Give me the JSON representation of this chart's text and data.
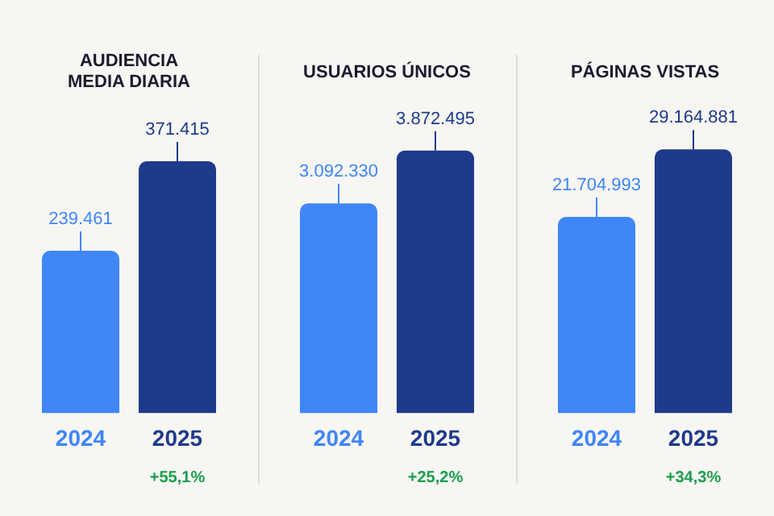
{
  "chart_data": [
    {
      "type": "bar",
      "title": "AUDIENCIA MEDIA DIARIA",
      "categories": [
        "2024",
        "2025"
      ],
      "values": [
        239461,
        371415
      ],
      "value_labels": [
        "239.461",
        "371.415"
      ],
      "colors": [
        "#3f86f7",
        "#1e3a8a"
      ],
      "tick_labels": "x",
      "annotations": [
        "+55,1%"
      ]
    },
    {
      "type": "bar",
      "title": "USUARIOS ÚNICOS",
      "categories": [
        "2024",
        "2025"
      ],
      "values": [
        3092330,
        3872495
      ],
      "value_labels": [
        "3.092.330",
        "3.872.495"
      ],
      "colors": [
        "#3f86f7",
        "#1e3a8a"
      ],
      "tick_labels": "x",
      "annotations": [
        "+25,2%"
      ]
    },
    {
      "type": "bar",
      "title": "PÁGINAS VISTAS",
      "categories": [
        "2024",
        "2025"
      ],
      "values": [
        21704993,
        29164881
      ],
      "value_labels": [
        "21.704.993",
        "29.164.881"
      ],
      "colors": [
        "#3f86f7",
        "#1e3a8a"
      ],
      "tick_labels": "x",
      "annotations": [
        "+34,3%"
      ]
    }
  ]
}
